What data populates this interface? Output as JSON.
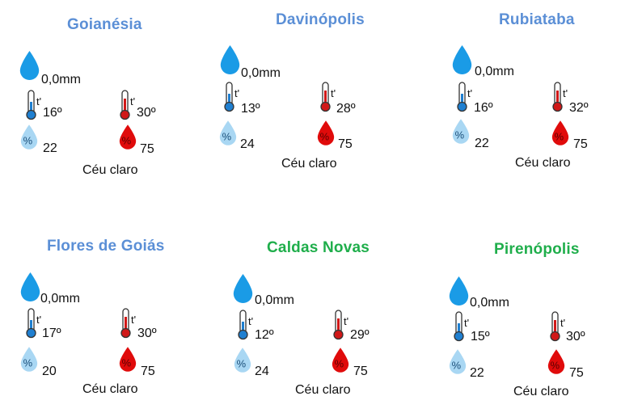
{
  "cities": [
    {
      "name": "Goianésia",
      "rain": "0,0mm",
      "tmin": "16º",
      "tmax": "30º",
      "hmin": "22",
      "hmax": "75",
      "condition": "Céu claro",
      "name_color": "#5b8fd6"
    },
    {
      "name": "Davinópolis",
      "rain": "0,0mm",
      "tmin": "13º",
      "tmax": "28º",
      "hmin": "24",
      "hmax": "75",
      "condition": "Céu claro",
      "name_color": "#5b8fd6"
    },
    {
      "name": "Rubiataba",
      "rain": "0,0mm",
      "tmin": "16º",
      "tmax": "32º",
      "hmin": "22",
      "hmax": "75",
      "condition": "Céu claro",
      "name_color": "#5b8fd6"
    },
    {
      "name": "Flores de Goiás",
      "rain": "0,0mm",
      "tmin": "17º",
      "tmax": "30º",
      "hmin": "20",
      "hmax": "75",
      "condition": "Céu claro",
      "name_color": "#5b8fd6"
    },
    {
      "name": "Caldas Novas",
      "rain": "0,0mm",
      "tmin": "12º",
      "tmax": "29º",
      "hmin": "24",
      "hmax": "75",
      "condition": "Céu claro",
      "name_color": "#1fae4b"
    },
    {
      "name": "Pirenópolis",
      "rain": "0,0mm",
      "tmin": "15º",
      "tmax": "30º",
      "hmin": "22",
      "hmax": "75",
      "condition": "Céu claro",
      "name_color": "#1fae4b"
    }
  ],
  "icons": {
    "rain": "rain-drop-icon",
    "thermo_min": "thermometer-low-icon",
    "thermo_max": "thermometer-high-icon",
    "humidity_min": "humidity-low-icon",
    "humidity_max": "humidity-high-icon"
  },
  "colors": {
    "rain_drop": "#1a9be6",
    "thermo_blue": "#1f7fd0",
    "thermo_red": "#d01818",
    "hum_light": "#a9d7f3",
    "hum_red": "#e00b0b"
  }
}
